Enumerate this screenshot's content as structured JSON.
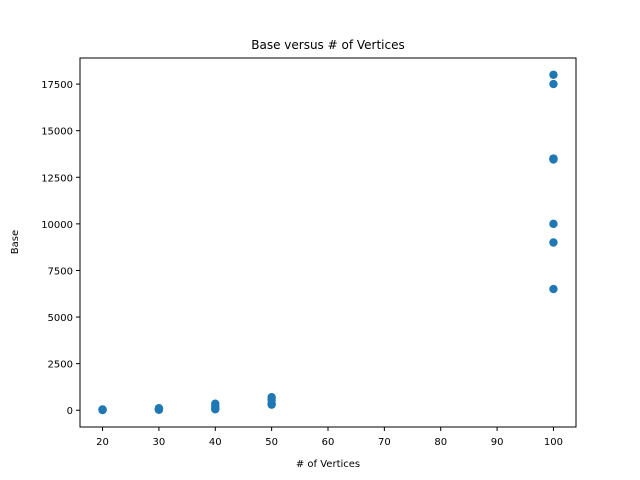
{
  "chart_data": {
    "type": "scatter",
    "title": "Base versus # of Vertices",
    "xlabel": "# of Vertices",
    "ylabel": "Base",
    "xlim": [
      16,
      104
    ],
    "ylim": [
      -900,
      18900
    ],
    "xticks": [
      20,
      30,
      40,
      50,
      60,
      70,
      80,
      90,
      100
    ],
    "yticks": [
      0,
      2500,
      5000,
      7500,
      10000,
      12500,
      15000,
      17500
    ],
    "grid": false,
    "marker_color": "#1f77b4",
    "series": [
      {
        "x": [
          20,
          20,
          20,
          20,
          30,
          30,
          30,
          30,
          40,
          40,
          40,
          40,
          50,
          50,
          50,
          50,
          100,
          100,
          100,
          100,
          100,
          100,
          100,
          100
        ],
        "y": [
          10,
          20,
          30,
          40,
          25,
          50,
          80,
          110,
          50,
          100,
          200,
          350,
          300,
          350,
          550,
          700,
          6500,
          9000,
          10000,
          13500,
          13500,
          17500,
          18000,
          13450
        ]
      }
    ]
  }
}
